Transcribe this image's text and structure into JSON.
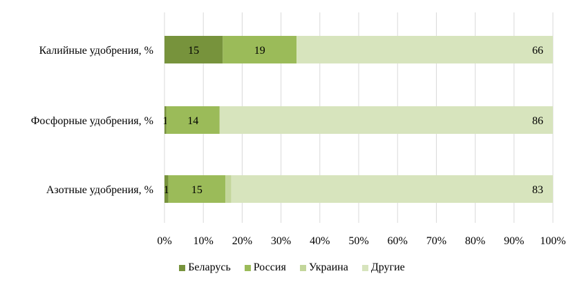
{
  "chart_data": {
    "type": "bar",
    "orientation": "horizontal",
    "stacked": "percent",
    "categories": [
      "Калийные удобрения, %",
      "Фосфорные удобрения, %",
      "Азотные удобрения, %"
    ],
    "series": [
      {
        "name": "Беларусь",
        "color": "#77933c",
        "values": [
          15,
          0.5,
          1
        ],
        "labels": [
          "15",
          "1",
          "1"
        ]
      },
      {
        "name": "Россия",
        "color": "#9bbb59",
        "values": [
          19,
          13.7,
          14.7
        ],
        "labels": [
          "19",
          "14",
          "15"
        ]
      },
      {
        "name": "Украина",
        "color": "#c3d69b",
        "values": [
          0,
          0,
          1.5
        ],
        "labels": [
          "",
          "",
          ""
        ]
      },
      {
        "name": "Другие",
        "color": "#d7e4bd",
        "values": [
          66,
          85.8,
          82.8
        ],
        "labels": [
          "66",
          "86",
          "83"
        ]
      }
    ],
    "xticks": [
      "0%",
      "10%",
      "20%",
      "30%",
      "40%",
      "50%",
      "60%",
      "70%",
      "80%",
      "90%",
      "100%"
    ],
    "xlim": [
      0,
      100
    ],
    "grid": "vertical",
    "legend_position": "bottom",
    "title": "",
    "xlabel": "",
    "ylabel": ""
  }
}
